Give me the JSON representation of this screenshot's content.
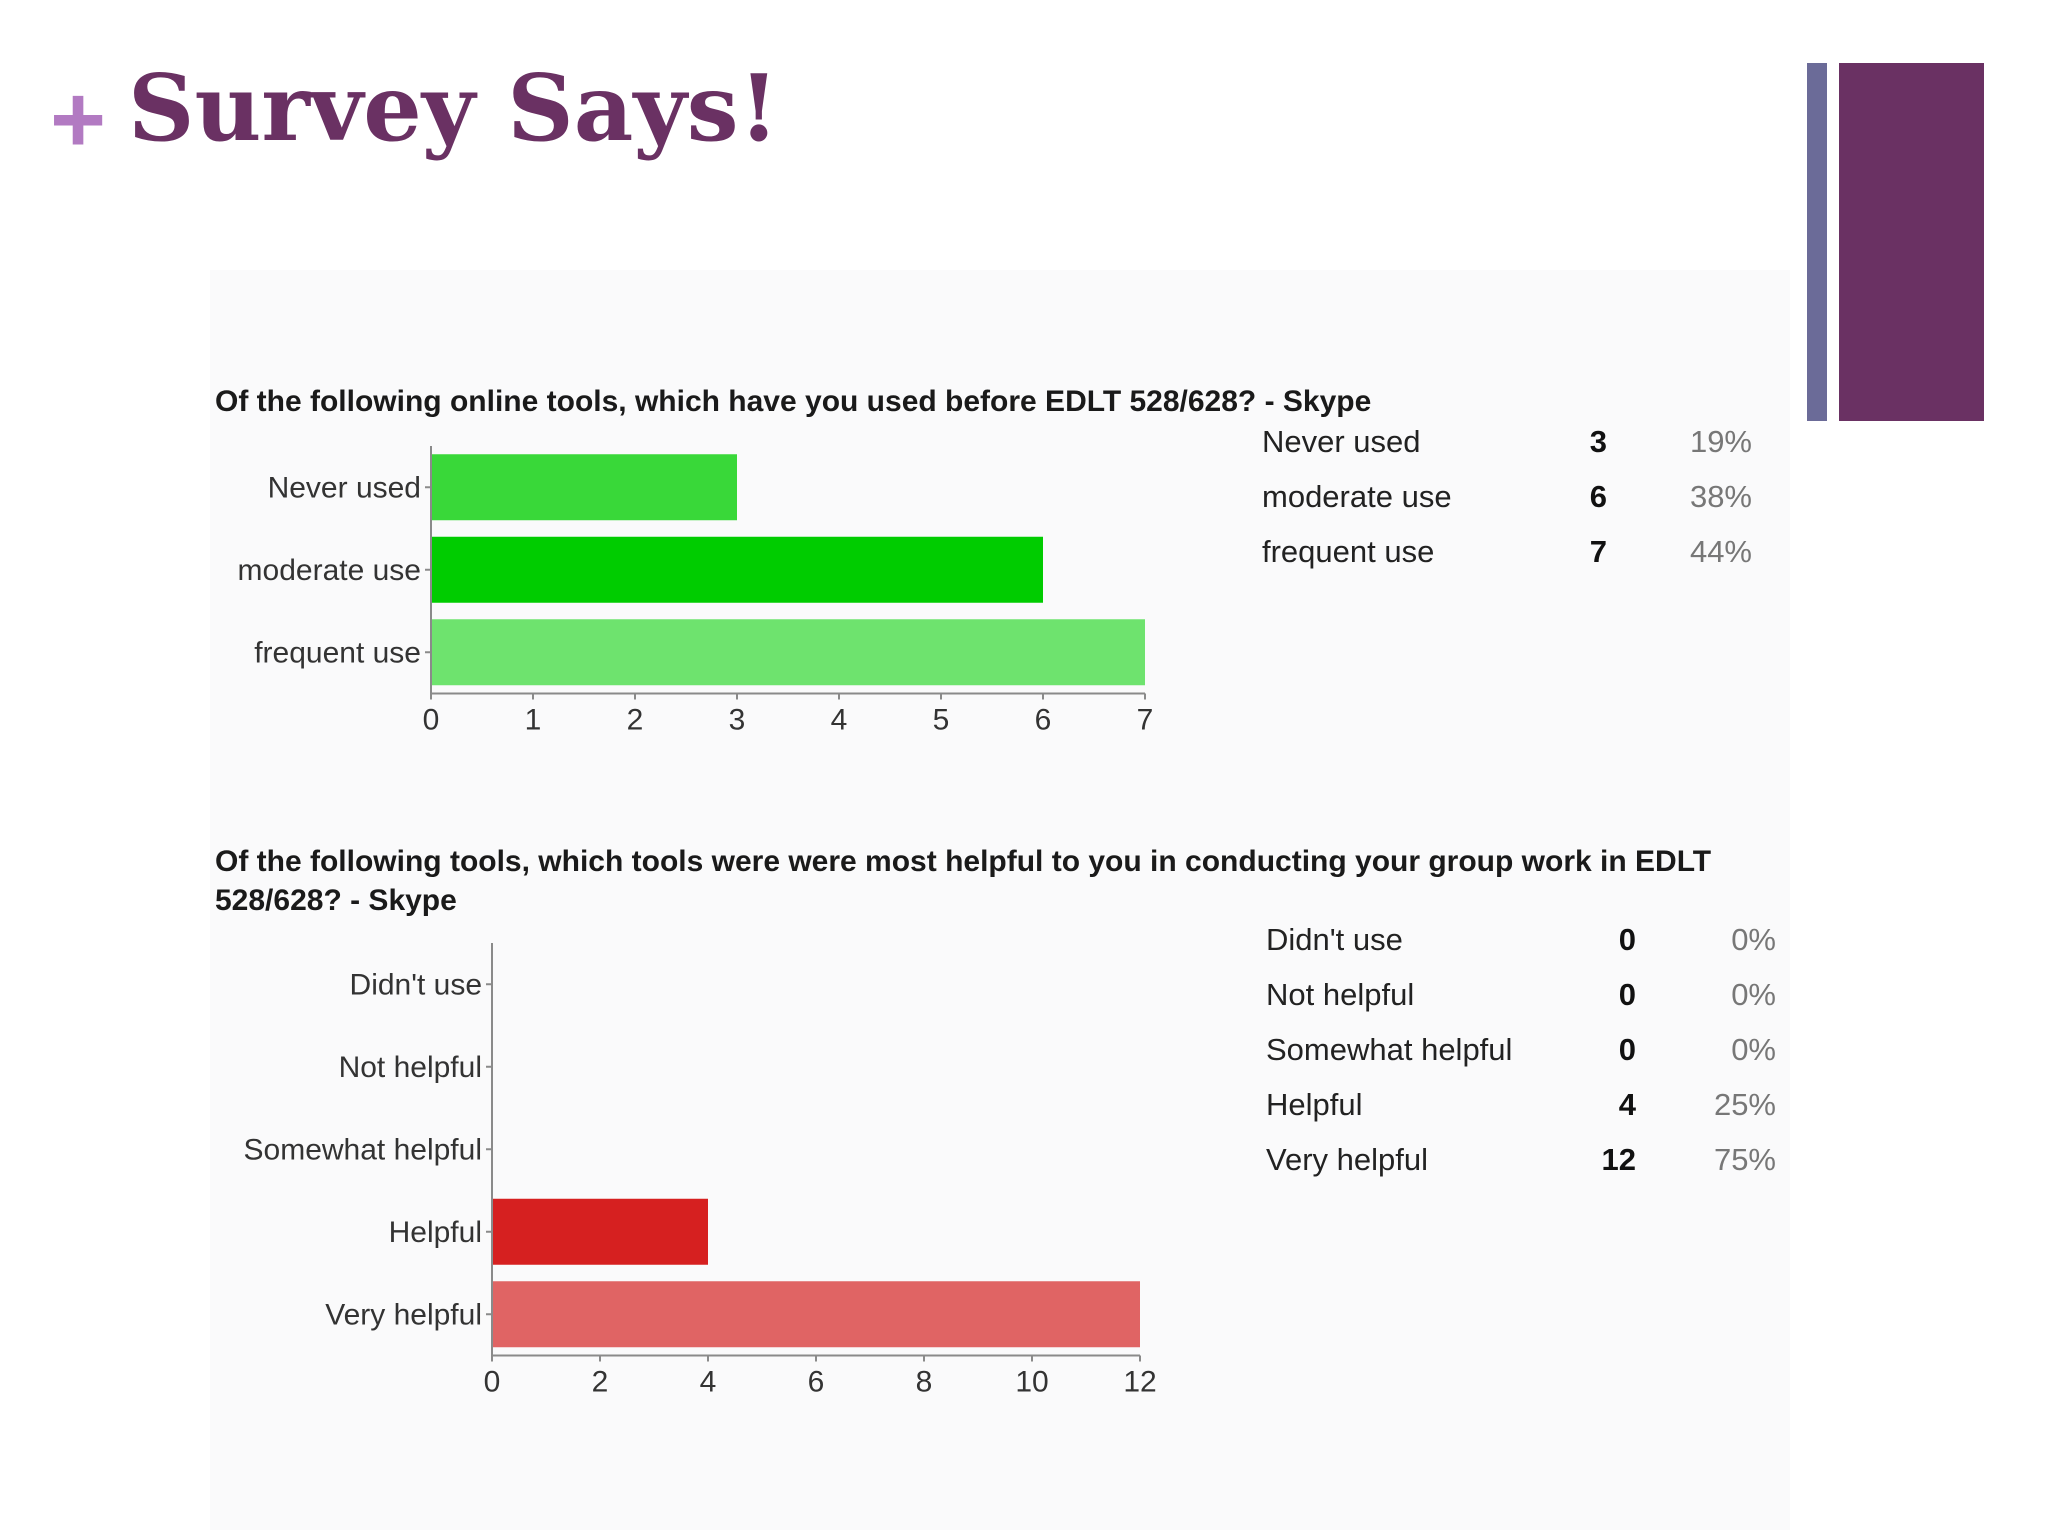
{
  "slide": {
    "plus": "+",
    "title": "Survey Says!",
    "accent_colors": [
      "#6b6b98",
      "#6a3163"
    ]
  },
  "chart_data": [
    {
      "type": "bar",
      "orientation": "horizontal",
      "title": "Of the following online tools, which have you used before EDLT 528/628? - Skype",
      "categories": [
        "Never used",
        "moderate use",
        "frequent use"
      ],
      "values": [
        3,
        6,
        7
      ],
      "colors": [
        "#39d839",
        "#00cc00",
        "#6ee36e"
      ],
      "xlim": [
        0,
        7
      ],
      "xticks": [
        0,
        1,
        2,
        3,
        4,
        5,
        6,
        7
      ],
      "grid": false,
      "table": [
        {
          "label": "Never used",
          "count": "3",
          "percent": "19%"
        },
        {
          "label": "moderate use",
          "count": "6",
          "percent": "38%"
        },
        {
          "label": "frequent use",
          "count": "7",
          "percent": "44%"
        }
      ]
    },
    {
      "type": "bar",
      "orientation": "horizontal",
      "title": "Of the following tools, which tools were were most helpful to you in conducting your group work in EDLT 528/628? - Skype",
      "categories": [
        "Didn't use",
        "Not helpful",
        "Somewhat helpful",
        "Helpful",
        "Very helpful"
      ],
      "values": [
        0,
        0,
        0,
        4,
        12
      ],
      "colors": [
        "#dd2222",
        "#dd2222",
        "#dd2222",
        "#d62020",
        "#e06464"
      ],
      "xlim": [
        0,
        12
      ],
      "xticks": [
        0,
        2,
        4,
        6,
        8,
        10,
        12
      ],
      "grid": false,
      "table": [
        {
          "label": "Didn't use",
          "count": "0",
          "percent": "0%"
        },
        {
          "label": "Not helpful",
          "count": "0",
          "percent": "0%"
        },
        {
          "label": "Somewhat helpful",
          "count": "0",
          "percent": "0%"
        },
        {
          "label": "Helpful",
          "count": "4",
          "percent": "25%"
        },
        {
          "label": "Very helpful",
          "count": "12",
          "percent": "75%"
        }
      ]
    }
  ]
}
